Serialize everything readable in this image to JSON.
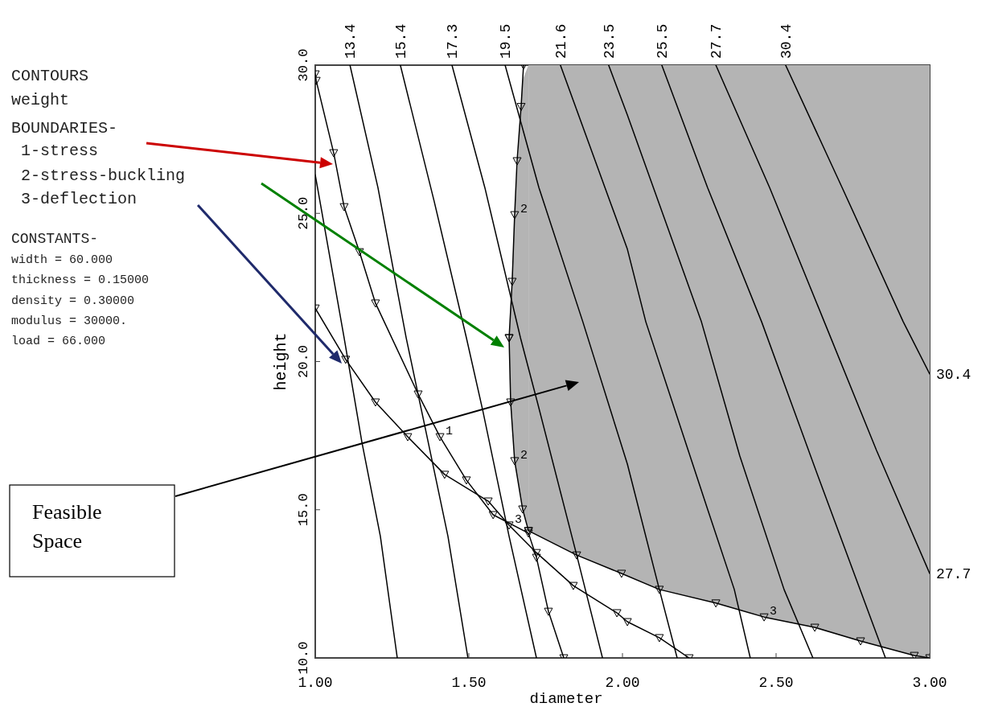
{
  "chart_data": {
    "type": "line",
    "xlabel": "diameter",
    "ylabel": "height",
    "xlim": [
      1,
      3
    ],
    "ylim": [
      10,
      30
    ],
    "xticks": [
      {
        "value": 1,
        "label": "1.00"
      },
      {
        "value": 1.5,
        "label": "1.50"
      },
      {
        "value": 2,
        "label": "2.00"
      },
      {
        "value": 2.5,
        "label": "2.50"
      },
      {
        "value": 3,
        "label": "3.00"
      }
    ],
    "yticks": [
      {
        "value": 10,
        "label": "10.0"
      },
      {
        "value": 15,
        "label": "15.0"
      },
      {
        "value": 20,
        "label": "20.0"
      },
      {
        "value": 25,
        "label": "25.0"
      },
      {
        "value": 30,
        "label": "30.0"
      }
    ],
    "annotations": [
      "CONTOURS",
      "weight",
      "BOUNDARIES-",
      "1-stress",
      "2-stress-buckling",
      "3-deflection",
      "CONSTANTS-",
      "width = 60.000",
      "thickness = 0.15000",
      "density = 0.30000",
      "modulus = 30000.",
      "load = 66.000",
      "Feasible Space"
    ],
    "series": [
      {
        "color": "#000000",
        "x": [
          1.0,
          1.094,
          1.152,
          1.212,
          1.267
        ],
        "values": [
          26.3,
          20.8,
          17.27,
          14.1,
          10
        ]
      },
      {
        "name": "13.4",
        "color": "#000000",
        "x": [
          1.113,
          1.204,
          1.296,
          1.353,
          1.432,
          1.497
        ],
        "values": [
          30,
          25.87,
          20.8,
          18.0,
          14.1,
          10
        ]
      },
      {
        "name": "15.4",
        "color": "#000000",
        "x": [
          1.277,
          1.387,
          1.492,
          1.545,
          1.631,
          1.72
        ],
        "values": [
          30,
          25.41,
          20.8,
          18.36,
          14.1,
          10
        ]
      },
      {
        "name": "17.3",
        "color": "#000000",
        "x": [
          1.445,
          1.552,
          1.668,
          1.723,
          1.851,
          1.935
        ],
        "values": [
          30,
          25.87,
          20.8,
          18.63,
          13.47,
          10
        ]
      },
      {
        "name": "19.5",
        "color": "#000000",
        "x": [
          1.618,
          1.728,
          1.871,
          2.016,
          2.12,
          2.178
        ],
        "values": [
          30,
          25.87,
          21.34,
          16.54,
          12.31,
          10
        ]
      },
      {
        "name": "21.6",
        "color": "#000000",
        "x": [
          1.798,
          2.016,
          2.076,
          2.277,
          2.364,
          2.416
        ],
        "values": [
          30,
          23.79,
          21.34,
          15.02,
          12.31,
          10
        ]
      },
      {
        "name": "23.5",
        "color": "#000000",
        "x": [
          1.955,
          2.016,
          2.257,
          2.382,
          2.526,
          2.62
        ],
        "values": [
          30,
          28.32,
          21.34,
          16.81,
          12.31,
          10
        ]
      },
      {
        "name": "25.5",
        "color": "#000000",
        "x": [
          2.128,
          2.277,
          2.453,
          2.644,
          2.856
        ],
        "values": [
          30,
          25.87,
          21.34,
          15.92,
          10
        ]
      },
      {
        "name": "27.7",
        "color": "#000000",
        "x": [
          2.304,
          2.479,
          2.657,
          2.827,
          3.0
        ],
        "values": [
          30,
          25.87,
          21.34,
          17.0,
          12.85
        ]
      },
      {
        "name": "30.4",
        "color": "#000000",
        "x": [
          2.531,
          2.715,
          2.914,
          3.0
        ],
        "values": [
          30,
          25.87,
          21.34,
          19.58
        ]
      },
      {
        "name": "1",
        "color": "#000000",
        "marker": "triangle",
        "x": [
          1.0,
          1.003,
          1.06,
          1.094,
          1.144,
          1.196,
          1.335,
          1.406,
          1.492,
          1.579,
          1.694,
          1.72,
          1.759,
          1.809
        ],
        "values": [
          29.7,
          29.48,
          27.04,
          25.22,
          23.7,
          21.97,
          18.9,
          17.46,
          16.0,
          14.83,
          14.21,
          13.39,
          11.57,
          10
        ]
      },
      {
        "name": "2",
        "color": "#000000",
        "marker": "triangle",
        "x": [
          1.678,
          1.67,
          1.657,
          1.649,
          1.641,
          1.631
        ],
        "values": [
          30,
          28.6,
          26.77,
          24.95,
          22.7,
          20.8
        ]
      },
      {
        "name": "2",
        "color": "#000000",
        "marker": "triangle",
        "x": [
          1.631,
          1.636,
          1.649,
          1.675,
          1.694
        ],
        "values": [
          20.8,
          18.63,
          16.65,
          15.02,
          14.29
        ],
        "lower": [
          20.8,
          18.63,
          16.65,
          15.02,
          14.29
        ],
        "upper": [
          20.8,
          21.8,
          24.95,
          29.5,
          30
        ]
      },
      {
        "name": "3",
        "color": "#000000",
        "marker": "triangle",
        "x": [
          1.0,
          1.099,
          1.196,
          1.301,
          1.421,
          1.563,
          1.631,
          1.72,
          1.84,
          1.982,
          2.016,
          2.12,
          2.217
        ],
        "values": [
          21.8,
          20.07,
          18.63,
          17.46,
          16.19,
          15.29,
          14.48,
          13.55,
          12.44,
          11.52,
          11.22,
          10.68,
          10
        ]
      },
      {
        "name": "3",
        "color": "#000000",
        "marker": "triangle",
        "x": [
          1.694,
          1.851,
          1.997,
          2.12,
          2.304,
          2.461,
          2.626,
          2.775,
          2.95,
          3.0
        ],
        "values": [
          14.29,
          13.47,
          12.85,
          12.31,
          11.85,
          11.38,
          11.03,
          10.57,
          10.08,
          10
        ],
        "lower": [
          14.29,
          13.47,
          12.85,
          12.31,
          11.85,
          11.38,
          11.03,
          10.57,
          10.08,
          10
        ],
        "upper": [
          30,
          30,
          30,
          30,
          30,
          30,
          30,
          30,
          30,
          30
        ]
      }
    ]
  }
}
